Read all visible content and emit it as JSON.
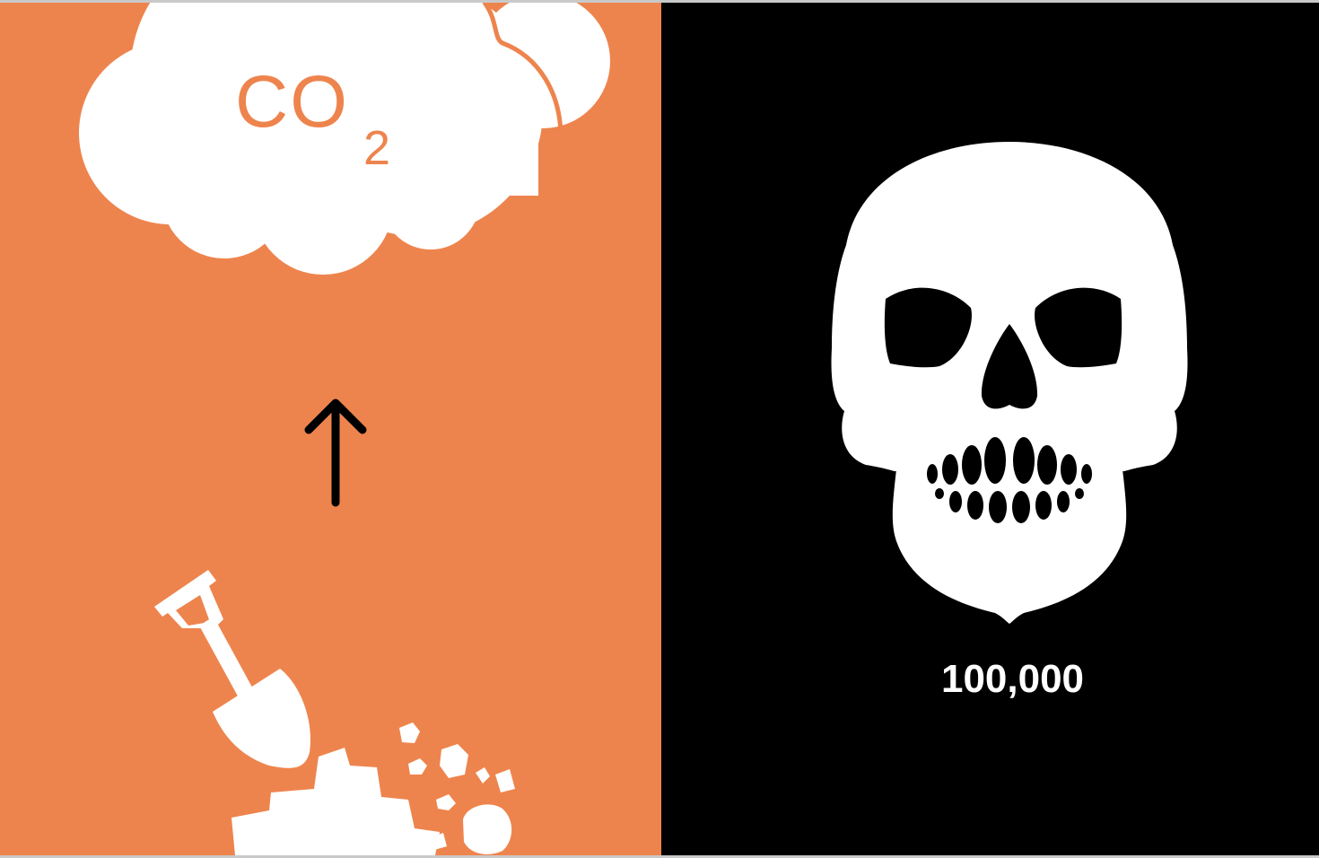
{
  "left_panel": {
    "background_color": "#ee844d",
    "cloud": {
      "icon": "cloud-icon",
      "color": "#ffffff",
      "label_main": "CO",
      "label_subscript": "2"
    },
    "arrow": {
      "icon": "up-arrow-icon",
      "color": "#000000"
    },
    "shovel": {
      "icon": "shovel-icon",
      "color": "#ffffff"
    },
    "dirt_pile": {
      "icon": "dirt-pile-icon",
      "color": "#ffffff"
    }
  },
  "right_panel": {
    "background_color": "#000000",
    "skull": {
      "icon": "skull-icon",
      "color": "#ffffff"
    },
    "count_label": "100,000"
  }
}
